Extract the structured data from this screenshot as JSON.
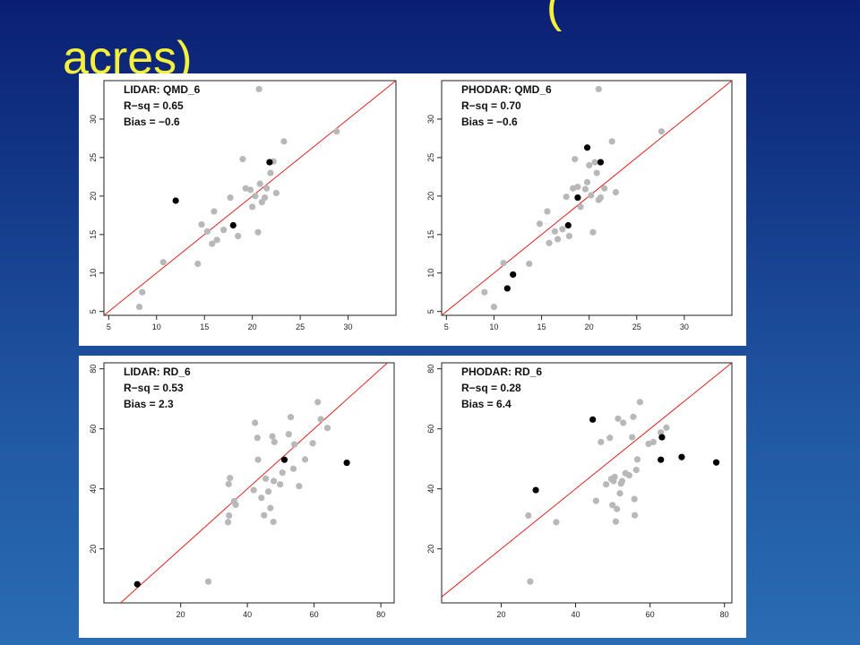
{
  "slide": {
    "title_line1": "(",
    "title_line2": "acres)"
  },
  "colors": {
    "background_top": "#0a1f73",
    "background_bottom": "#2a6cb4",
    "title": "#f5f03a",
    "fit_line": "#e0201c",
    "gray_point": "#b8b8b8",
    "black_point": "#000000"
  },
  "chart_data": [
    {
      "type": "scatter",
      "title": "LIDAR: QMD_6",
      "stats": [
        "R−sq = 0.65",
        "Bias = −0.6"
      ],
      "xlim": [
        4.5,
        35
      ],
      "ylim": [
        4.5,
        35
      ],
      "xticks": [
        5,
        10,
        15,
        20,
        25,
        30
      ],
      "yticks": [
        5,
        10,
        15,
        20,
        25,
        30
      ],
      "reference_line": "y = x",
      "series": [
        {
          "color": "gray",
          "points": [
            [
              8.2,
              5.6
            ],
            [
              8.5,
              7.5
            ],
            [
              10.7,
              11.4
            ],
            [
              14.3,
              11.2
            ],
            [
              14.7,
              16.3
            ],
            [
              15.3,
              15.4
            ],
            [
              15.8,
              13.8
            ],
            [
              16.3,
              14.3
            ],
            [
              16.0,
              18.0
            ],
            [
              17.0,
              15.6
            ],
            [
              17.7,
              19.8
            ],
            [
              18.5,
              14.8
            ],
            [
              19.0,
              24.8
            ],
            [
              19.3,
              21.0
            ],
            [
              19.8,
              20.8
            ],
            [
              20.0,
              18.6
            ],
            [
              20.3,
              20.0
            ],
            [
              20.6,
              15.3
            ],
            [
              20.8,
              21.6
            ],
            [
              21.0,
              19.2
            ],
            [
              21.3,
              19.8
            ],
            [
              21.5,
              21.0
            ],
            [
              21.9,
              23.0
            ],
            [
              22.2,
              24.5
            ],
            [
              22.5,
              20.4
            ],
            [
              23.3,
              27.1
            ],
            [
              20.7,
              33.9
            ],
            [
              28.8,
              28.4
            ]
          ]
        },
        {
          "color": "black",
          "points": [
            [
              12.0,
              19.4
            ],
            [
              18.0,
              16.2
            ],
            [
              21.8,
              24.4
            ]
          ]
        }
      ]
    },
    {
      "type": "scatter",
      "title": "PHODAR: QMD_6",
      "stats": [
        "R−sq = 0.70",
        "Bias = −0.6"
      ],
      "xlim": [
        4.5,
        35
      ],
      "ylim": [
        4.5,
        35
      ],
      "xticks": [
        5,
        10,
        15,
        20,
        25,
        30
      ],
      "yticks": [
        5,
        10,
        15,
        20,
        25,
        30
      ],
      "reference_line": "y = x",
      "series": [
        {
          "color": "gray",
          "points": [
            [
              9.0,
              7.5
            ],
            [
              10.0,
              5.6
            ],
            [
              11.0,
              11.3
            ],
            [
              13.7,
              11.2
            ],
            [
              14.8,
              16.4
            ],
            [
              15.6,
              18.0
            ],
            [
              15.8,
              13.9
            ],
            [
              16.4,
              15.4
            ],
            [
              16.7,
              14.4
            ],
            [
              17.2,
              15.7
            ],
            [
              17.6,
              19.9
            ],
            [
              17.9,
              14.8
            ],
            [
              18.3,
              21.0
            ],
            [
              18.5,
              24.8
            ],
            [
              18.8,
              21.2
            ],
            [
              19.1,
              18.6
            ],
            [
              19.6,
              20.9
            ],
            [
              19.8,
              21.8
            ],
            [
              20.0,
              24.0
            ],
            [
              20.2,
              20.1
            ],
            [
              20.4,
              15.3
            ],
            [
              20.8,
              23.0
            ],
            [
              20.6,
              24.4
            ],
            [
              21.0,
              19.5
            ],
            [
              21.2,
              19.8
            ],
            [
              21.6,
              21.0
            ],
            [
              22.4,
              27.1
            ],
            [
              22.8,
              20.5
            ],
            [
              21.0,
              33.9
            ],
            [
              27.6,
              28.4
            ]
          ]
        },
        {
          "color": "black",
          "points": [
            [
              11.4,
              8.0
            ],
            [
              12.0,
              9.8
            ],
            [
              17.8,
              16.2
            ],
            [
              18.8,
              19.8
            ],
            [
              19.8,
              26.3
            ],
            [
              21.2,
              24.4
            ]
          ]
        }
      ]
    },
    {
      "type": "scatter",
      "title": "LIDAR: RD_6",
      "stats": [
        "R−sq = 0.53",
        "Bias = 2.3"
      ],
      "xlim": [
        -3,
        84
      ],
      "ylim": [
        2,
        82
      ],
      "xticks": [
        20,
        40,
        60,
        80
      ],
      "yticks": [
        20,
        40,
        60,
        80
      ],
      "reference_line": "y = x",
      "series": [
        {
          "color": "gray",
          "points": [
            [
              28.3,
              9.1
            ],
            [
              34.2,
              28.9
            ],
            [
              34.5,
              31.1
            ],
            [
              34.4,
              41.6
            ],
            [
              34.8,
              43.6
            ],
            [
              36.0,
              35.9
            ],
            [
              36.5,
              34.7
            ],
            [
              41.9,
              39.6
            ],
            [
              42.3,
              62.0
            ],
            [
              43.0,
              57.0
            ],
            [
              43.2,
              49.7
            ],
            [
              44.2,
              37.0
            ],
            [
              45.0,
              31.2
            ],
            [
              45.5,
              43.4
            ],
            [
              46.3,
              39.1
            ],
            [
              46.9,
              33.6
            ],
            [
              47.5,
              57.5
            ],
            [
              47.9,
              42.6
            ],
            [
              48.1,
              55.6
            ],
            [
              47.8,
              29.0
            ],
            [
              49.8,
              41.5
            ],
            [
              50.5,
              45.4
            ],
            [
              52.4,
              58.2
            ],
            [
              53.0,
              63.9
            ],
            [
              53.8,
              46.7
            ],
            [
              54.1,
              54.8
            ],
            [
              55.5,
              40.9
            ],
            [
              57.3,
              49.8
            ],
            [
              59.6,
              55.2
            ],
            [
              61.1,
              68.9
            ],
            [
              62.0,
              63.2
            ],
            [
              64.0,
              60.3
            ]
          ]
        },
        {
          "color": "black",
          "points": [
            [
              7.0,
              8.2
            ],
            [
              51.1,
              49.7
            ],
            [
              69.8,
              48.7
            ]
          ]
        }
      ]
    },
    {
      "type": "scatter",
      "title": "PHODAR: RD_6",
      "stats": [
        "R−sq = 0.28",
        "Bias = 6.4"
      ],
      "xlim": [
        4,
        82
      ],
      "ylim": [
        2,
        82
      ],
      "xticks": [
        20,
        40,
        60,
        80
      ],
      "yticks": [
        20,
        40,
        60,
        80
      ],
      "reference_line": "y = x",
      "series": [
        {
          "color": "gray",
          "points": [
            [
              27.3,
              31.1
            ],
            [
              27.8,
              9.1
            ],
            [
              34.8,
              28.9
            ],
            [
              45.5,
              36.0
            ],
            [
              46.8,
              55.6
            ],
            [
              48.2,
              41.5
            ],
            [
              49.2,
              57.0
            ],
            [
              49.6,
              43.3
            ],
            [
              49.9,
              34.6
            ],
            [
              50.2,
              42.6
            ],
            [
              50.5,
              44.0
            ],
            [
              50.8,
              29.1
            ],
            [
              51.1,
              33.3
            ],
            [
              51.4,
              63.4
            ],
            [
              51.9,
              38.5
            ],
            [
              52.2,
              41.8
            ],
            [
              52.5,
              42.6
            ],
            [
              52.8,
              62.0
            ],
            [
              53.4,
              45.2
            ],
            [
              54.4,
              44.5
            ],
            [
              55.2,
              57.2
            ],
            [
              55.5,
              64.0
            ],
            [
              55.8,
              36.6
            ],
            [
              55.9,
              31.2
            ],
            [
              56.3,
              46.3
            ],
            [
              56.6,
              49.8
            ],
            [
              57.3,
              68.9
            ],
            [
              59.6,
              55.0
            ],
            [
              60.9,
              55.6
            ],
            [
              62.9,
              58.8
            ],
            [
              64.4,
              60.4
            ]
          ]
        },
        {
          "color": "black",
          "points": [
            [
              29.3,
              39.6
            ],
            [
              44.6,
              63.1
            ],
            [
              62.9,
              49.7
            ],
            [
              63.2,
              57.2
            ],
            [
              68.5,
              50.6
            ],
            [
              77.8,
              48.8
            ]
          ]
        }
      ]
    }
  ]
}
